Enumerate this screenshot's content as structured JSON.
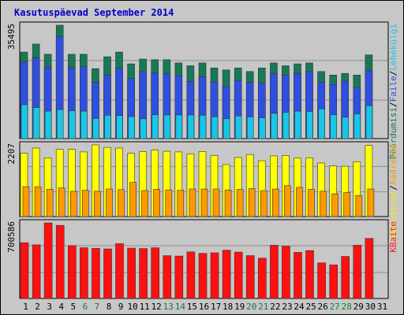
{
  "chart_data": {
    "type": "bar",
    "title": "Kasutuspäevad September 2014",
    "categories": [
      "1",
      "2",
      "3",
      "4",
      "5",
      "6",
      "7",
      "8",
      "9",
      "10",
      "11",
      "12",
      "13",
      "14",
      "15",
      "16",
      "17",
      "18",
      "19",
      "20",
      "21",
      "22",
      "23",
      "24",
      "25",
      "26",
      "27",
      "28",
      "29",
      "30",
      "31"
    ],
    "weekend_days": [
      "6",
      "7",
      "13",
      "14",
      "20",
      "21",
      "27",
      "28"
    ],
    "panels": [
      {
        "id": "requests",
        "ymax_label": "35495",
        "ymax": 35495,
        "legend": [
          {
            "label": "Pöördumisi",
            "color": "#157a55"
          },
          {
            "label": "/",
            "color": "#000000"
          },
          {
            "label": "Faile",
            "color": "#2f4fe0"
          },
          {
            "label": "/",
            "color": "#000000"
          },
          {
            "label": "Lehekülgi",
            "color": "#19c6e6"
          }
        ],
        "series": [
          {
            "name": "Pöördumisi",
            "color": "#157a55",
            "values": [
              27100,
              29600,
              26400,
              35495,
              26400,
              26400,
              21900,
              25600,
              27100,
              23400,
              24900,
              24700,
              24700,
              23700,
              22800,
              23700,
              22100,
              21500,
              22100,
              21000,
              22100,
              23700,
              22800,
              23400,
              23700,
              21000,
              19900,
              20400,
              19900,
              26200,
              null
            ]
          },
          {
            "name": "Faile",
            "color": "#2f4fe0",
            "values": [
              24000,
              25300,
              22300,
              32000,
              22200,
              22500,
              17600,
              19800,
              22000,
              18800,
              20900,
              20500,
              20300,
              19700,
              17900,
              19400,
              17800,
              16300,
              18200,
              17600,
              17400,
              20400,
              19900,
              20400,
              21000,
              17600,
              16900,
              18000,
              16000,
              21300,
              null
            ]
          },
          {
            "name": "Lehekülgi",
            "color": "#19c6e6",
            "values": [
              10600,
              9700,
              8600,
              9100,
              8700,
              8600,
              6300,
              7300,
              7200,
              6900,
              6200,
              7500,
              7400,
              7400,
              7400,
              7300,
              6800,
              6200,
              7100,
              6800,
              6500,
              7900,
              8200,
              8600,
              8500,
              9300,
              7500,
              6700,
              7700,
              10300,
              null
            ]
          }
        ]
      },
      {
        "id": "visits",
        "ymax_label": "2207",
        "ymax": 2207,
        "legend": [
          {
            "label": "Külastusi",
            "color": "#f0f000"
          },
          {
            "label": "/",
            "color": "#000000"
          },
          {
            "label": "Aadresse",
            "color": "#f0a000"
          }
        ],
        "series": [
          {
            "name": "Külastusi",
            "color": "#ffff00",
            "values": [
              1950,
              2110,
              1810,
              2070,
              2070,
              1990,
              2207,
              2130,
              2110,
              1950,
              2000,
              2050,
              2010,
              1990,
              1930,
              2000,
              1880,
              1600,
              1820,
              1910,
              1720,
              1870,
              1880,
              1800,
              1810,
              1650,
              1560,
              1550,
              1690,
              2190,
              null
            ]
          },
          {
            "name": "Aadresse",
            "color": "#ff9900",
            "values": [
              920,
              920,
              840,
              880,
              780,
              810,
              780,
              850,
              830,
              1050,
              800,
              840,
              820,
              810,
              850,
              850,
              850,
              820,
              840,
              860,
              800,
              850,
              950,
              900,
              840,
              780,
              700,
              740,
              650,
              850,
              null
            ]
          }
        ]
      },
      {
        "id": "traffic",
        "ymax_label": "700586",
        "ymax": 700586,
        "legend": [
          {
            "label": "KBaite",
            "color": "#ff2020"
          }
        ],
        "series": [
          {
            "name": "KBaite",
            "color": "#ff1010",
            "values": [
              517000,
              497000,
              700586,
              677000,
              490000,
              470000,
              464000,
              459000,
              508000,
              466000,
              463000,
              470000,
              396000,
              393000,
              432000,
              418000,
              423000,
              447000,
              430000,
              397000,
              374000,
              493000,
              484000,
              427000,
              444000,
              330000,
              311000,
              390000,
              494000,
              556000,
              null
            ]
          }
        ]
      }
    ]
  }
}
